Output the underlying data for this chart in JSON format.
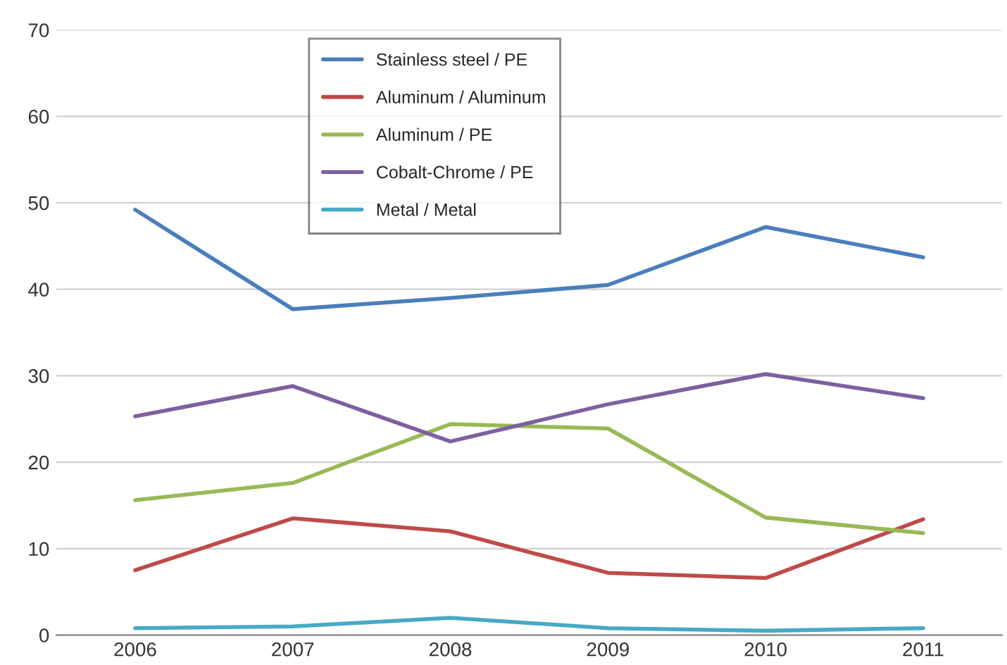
{
  "chart_data": {
    "type": "line",
    "categories": [
      "2006",
      "2007",
      "2008",
      "2009",
      "2010",
      "2011"
    ],
    "series": [
      {
        "name": "Stainless steel / PE",
        "color": "#4a7ebb",
        "values": [
          49.2,
          37.7,
          39.0,
          40.5,
          47.2,
          43.7
        ]
      },
      {
        "name": "Aluminum / Aluminum",
        "color": "#be4b48",
        "values": [
          7.5,
          13.5,
          12.0,
          7.2,
          6.6,
          13.4
        ]
      },
      {
        "name": "Aluminum / PE",
        "color": "#98b954",
        "values": [
          15.6,
          17.6,
          24.4,
          23.9,
          13.6,
          11.8
        ]
      },
      {
        "name": "Cobalt-Chrome / PE",
        "color": "#7d60a0",
        "values": [
          25.3,
          28.8,
          22.4,
          26.7,
          30.2,
          27.4
        ]
      },
      {
        "name": "Metal / Metal",
        "color": "#46aac5",
        "values": [
          0.8,
          1.0,
          2.0,
          0.8,
          0.5,
          0.8
        ]
      }
    ],
    "ylim": [
      0,
      70
    ],
    "yticks": [
      0,
      10,
      20,
      30,
      40,
      50,
      60,
      70
    ],
    "grid": "y",
    "legend": "top",
    "marker": "none",
    "line_style": "solid"
  }
}
